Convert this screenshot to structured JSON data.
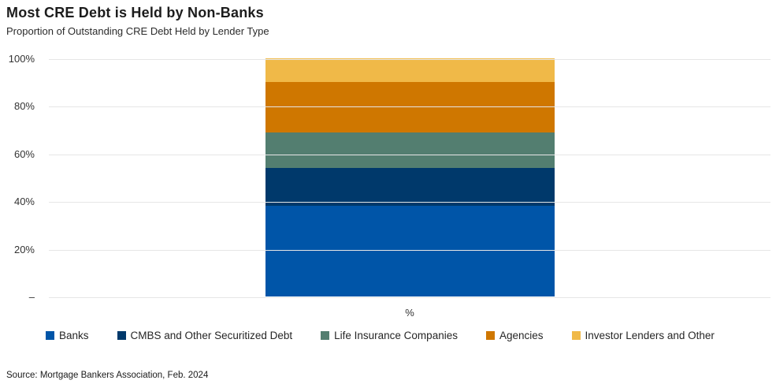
{
  "header": {
    "title": "Most CRE Debt is Held by Non-Banks",
    "subtitle": "Proportion of Outstanding CRE Debt Held by Lender Type"
  },
  "footer": {
    "source": "Source: Mortgage Bankers Association, Feb. 2024"
  },
  "colors": {
    "banks": "#0055A8",
    "cmbs": "#00396B",
    "life_insurance": "#537E70",
    "agencies": "#CF7700",
    "investor_other": "#F0B948",
    "gridline": "#E6E6E6",
    "text": "#262626"
  },
  "chart_data": {
    "type": "bar",
    "stacked": true,
    "orientation": "vertical",
    "categories": [
      "%"
    ],
    "series": [
      {
        "name": "Banks",
        "values": [
          38
        ],
        "color": "#0055A8"
      },
      {
        "name": "CMBS and Other Securitized Debt",
        "values": [
          16
        ],
        "color": "#00396B"
      },
      {
        "name": "Life Insurance Companies",
        "values": [
          15
        ],
        "color": "#537E70"
      },
      {
        "name": "Agencies",
        "values": [
          21
        ],
        "color": "#CF7700"
      },
      {
        "name": "Investor Lenders and Other",
        "values": [
          10
        ],
        "color": "#F0B948"
      }
    ],
    "title": "Most CRE Debt is Held by Non-Banks",
    "subtitle": "Proportion of Outstanding CRE Debt Held by Lender Type",
    "xlabel": "%",
    "ylabel": "",
    "ylim": [
      0,
      100
    ],
    "yticks": [
      {
        "value": 0,
        "label": "–"
      },
      {
        "value": 20,
        "label": "20%"
      },
      {
        "value": 40,
        "label": "40%"
      },
      {
        "value": 60,
        "label": "60%"
      },
      {
        "value": 80,
        "label": "80%"
      },
      {
        "value": 100,
        "label": "100%"
      }
    ],
    "grid": true,
    "legend_position": "bottom"
  }
}
